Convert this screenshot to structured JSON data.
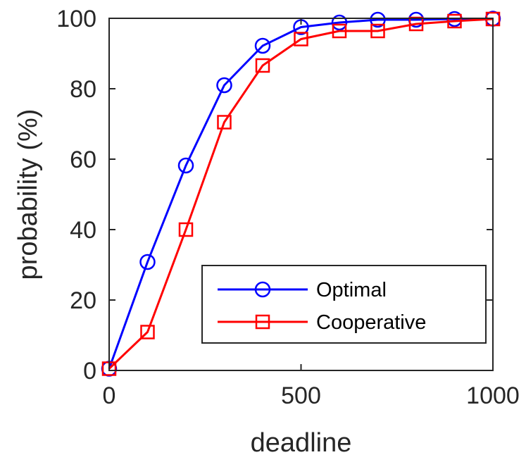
{
  "chart_data": {
    "type": "line",
    "xlabel": "deadline",
    "ylabel": "probability (%)",
    "xlim": [
      0,
      1000
    ],
    "ylim": [
      0,
      100
    ],
    "xticks": [
      0,
      500,
      1000
    ],
    "yticks": [
      0,
      20,
      40,
      60,
      80,
      100
    ],
    "grid": false,
    "legend_position": "bottom-right",
    "x": [
      0,
      100,
      200,
      300,
      400,
      500,
      600,
      700,
      800,
      900,
      1000
    ],
    "series": [
      {
        "name": "Optimal",
        "color": "#0000ff",
        "marker": "circle",
        "values": [
          0.5,
          30.8,
          58.2,
          81.0,
          92.2,
          97.5,
          98.8,
          99.6,
          99.6,
          99.8,
          99.9
        ]
      },
      {
        "name": "Cooperative",
        "color": "#ff0000",
        "marker": "square",
        "values": [
          0.5,
          10.9,
          40.0,
          70.5,
          86.6,
          94.1,
          96.4,
          96.4,
          98.4,
          99.2,
          99.8
        ]
      }
    ]
  }
}
